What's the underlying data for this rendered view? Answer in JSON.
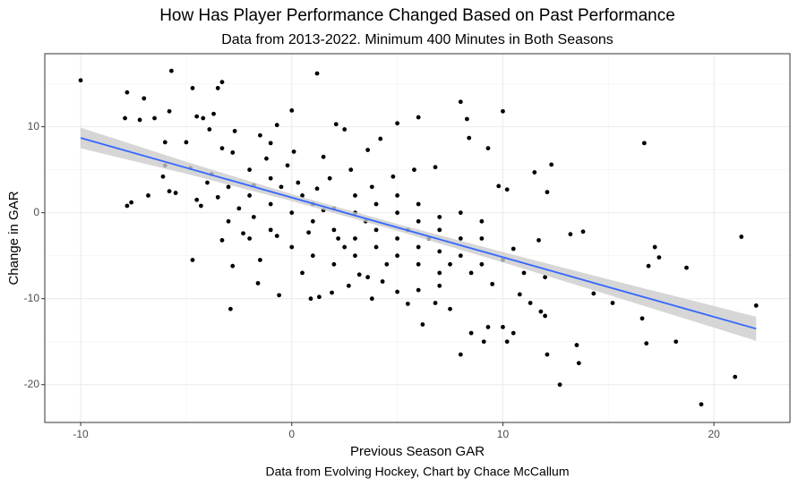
{
  "chart_data": {
    "type": "scatter",
    "title": "How Has Player Performance Changed Based on Past Performance",
    "subtitle": "Data from 2013-2022. Minimum 400 Minutes in Both Seasons",
    "x_label": "Previous Season GAR",
    "y_label": "Change in GAR",
    "caption": "Data from Evolving Hockey, Chart by Chace McCallum",
    "xlim": [
      -11.7,
      23.6
    ],
    "ylim": [
      -24.4,
      18.5
    ],
    "xticks": [
      -10,
      0,
      10,
      20
    ],
    "yticks": [
      -20,
      -10,
      0,
      10
    ],
    "xminor": [
      -5,
      5,
      15
    ],
    "yminor": [
      -15,
      -5,
      5,
      15
    ],
    "grid": true,
    "series": [
      {
        "color": "#000000",
        "x": [
          -10,
          -7.8,
          -5.7,
          -4.7,
          -3.3,
          -3.5,
          1.2,
          -7,
          -7.9,
          -7.2,
          -6.5,
          -5.8,
          -4.5,
          -4.2,
          -3.7,
          -7.6,
          -7.8,
          -6.1,
          -6.0,
          -5.8,
          -5.5,
          -6.8,
          -4.8,
          -4.5,
          -4.3,
          -4.7,
          -3.3,
          -2.8,
          -2.9,
          -1.6,
          -0.6,
          0.9,
          1.3,
          1.9,
          2.7,
          3.6,
          3.8,
          5,
          5.5,
          6.2,
          6.8,
          7.5,
          8,
          8.5,
          9.1,
          9.3,
          10,
          10.2,
          10.5,
          11.3,
          11.8,
          12.1,
          12.7,
          13.5,
          13.6,
          16.8,
          18.2,
          19.4,
          21,
          22,
          21.3,
          18.7,
          17.4,
          17.2,
          16.9,
          16.7,
          16.6,
          15.2,
          14.3,
          13.8,
          13.2,
          12.3,
          12.1,
          11.5,
          10,
          10.2,
          9.8,
          8,
          8.3,
          8.4,
          9.3,
          6,
          5,
          4.2,
          3.6,
          2.1,
          2.5,
          0,
          -0.7,
          -1.5,
          -2.7,
          -3.3,
          -1,
          0.1,
          1.5,
          -2,
          -1,
          -0.5,
          0.5,
          1,
          2,
          3,
          -3,
          -2,
          -1,
          0,
          1,
          2,
          3,
          4,
          5,
          6,
          7,
          4,
          5,
          6,
          7,
          8,
          9,
          10,
          11,
          12,
          3,
          4,
          5,
          6,
          7,
          8,
          9,
          5,
          6,
          7,
          8,
          9,
          -3,
          -2,
          -1,
          0,
          1,
          2,
          3,
          -1.5,
          0.5,
          2.5,
          3.5,
          4.5,
          5.5,
          6.5,
          7.5,
          8.5,
          -4,
          -3.5,
          -2.5,
          -1.8,
          0.3,
          1.8,
          2.8,
          3.8,
          4.8,
          5.8,
          6.8,
          -1.2,
          -0.2,
          1.2,
          4.3,
          6,
          7,
          10.8,
          12,
          11.7,
          10.5,
          9.5,
          2.2,
          3.2,
          -0.7,
          -2.3,
          0.8,
          1.5,
          -2.8,
          -1.8,
          -3.8,
          -5,
          -6,
          -3.9
        ],
        "values": [
          15.4,
          14,
          16.5,
          14.5,
          15.2,
          14.5,
          16.2,
          13.3,
          11,
          10.8,
          11,
          11.8,
          11.2,
          11,
          11.5,
          1.2,
          0.8,
          4.2,
          5.5,
          2.5,
          2.3,
          2,
          5.2,
          1.5,
          0.8,
          -5.5,
          -3.2,
          -6.2,
          -11.2,
          -8.2,
          -9.6,
          -10,
          -9.8,
          -9.3,
          -8.5,
          -7.5,
          -10,
          -9.2,
          -10.6,
          -13,
          -10.5,
          -11.2,
          -16.5,
          -14,
          -15,
          -13.3,
          -13.3,
          -15,
          -14,
          -10.5,
          -11.5,
          -16.5,
          -20,
          -15.4,
          -17.5,
          -15.2,
          -15,
          -22.3,
          -19.1,
          -10.8,
          -2.8,
          -6.4,
          -5.2,
          -4,
          -6.2,
          8.1,
          -12.3,
          -10.5,
          -9.4,
          -2.2,
          -2.5,
          5.6,
          2.4,
          4.7,
          11.8,
          2.7,
          3.1,
          12.9,
          10.9,
          8.7,
          7.5,
          11.1,
          10.4,
          8.6,
          7.3,
          10.3,
          9.7,
          11.9,
          10.2,
          9,
          9.5,
          7.5,
          8.1,
          7.1,
          6.5,
          5,
          4,
          3,
          2,
          1,
          0.5,
          0,
          3,
          2,
          1,
          0,
          -1,
          -2,
          -3,
          -4,
          -5,
          -6,
          -7,
          -2,
          -3,
          -4,
          -4.5,
          -5,
          -6,
          -5.5,
          -7,
          -7.5,
          2,
          1,
          0,
          -1,
          -2,
          -3,
          -3,
          2,
          1,
          -0.5,
          0,
          -1,
          -1,
          -3,
          -2,
          -4,
          -5,
          -6,
          -5,
          -5.5,
          -7,
          -4,
          -1,
          -6,
          -2,
          -3,
          -6,
          -7,
          3.5,
          1.8,
          0.5,
          -0.5,
          3.5,
          4,
          5,
          3,
          4.2,
          5,
          5.3,
          6.3,
          5.5,
          2.8,
          -8,
          -9,
          -8.5,
          -9.5,
          -12,
          -3.2,
          -4.2,
          -8.3,
          -3,
          -7.2,
          -2.7,
          -2.4,
          -2.3,
          0.3,
          7,
          3.2,
          4.5,
          8.2,
          8.2,
          9.7
        ]
      }
    ],
    "trend": {
      "color": "#3366ff",
      "band_color": "#cccccc",
      "x": [
        -10,
        -5,
        0,
        5,
        10,
        15,
        22
      ],
      "values": [
        8.7,
        5.23,
        1.76,
        -1.71,
        -5.18,
        -8.65,
        -13.5
      ],
      "lower": [
        7.5,
        4.53,
        1.36,
        -2.11,
        -5.78,
        -9.55,
        -14.9
      ],
      "upper": [
        9.9,
        5.93,
        2.16,
        -1.31,
        -4.58,
        -7.75,
        -12.1
      ]
    }
  }
}
